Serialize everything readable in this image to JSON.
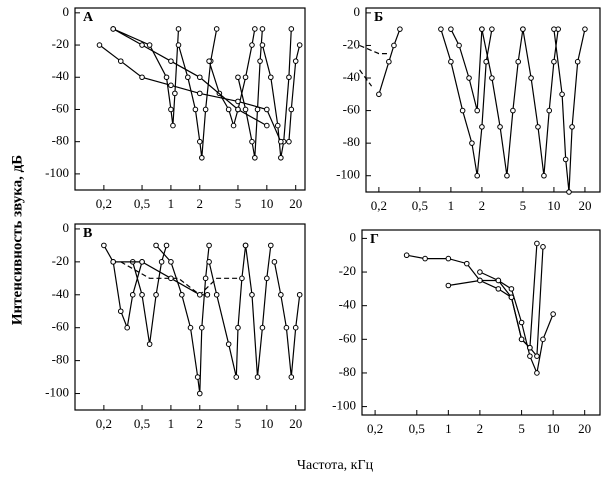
{
  "y_label": "Интенсивность звука, дБ",
  "x_label": "Частота, кГц",
  "chart_data": [
    {
      "type": "line",
      "title": "А",
      "log_x": true,
      "xlim": [
        0.1,
        25
      ],
      "ylim": [
        -110,
        3
      ],
      "xticks": [
        {
          "value": 0.2,
          "label": "0,2"
        },
        {
          "value": 0.5,
          "label": "0,5"
        },
        1,
        2,
        5,
        10,
        20
      ],
      "yticks": [
        0,
        -20,
        -40,
        -60,
        -80,
        -100
      ],
      "series": [
        {
          "color": "#000",
          "x": [
            0.25,
            0.6,
            0.9,
            1.0,
            1.05,
            1.1,
            1.2
          ],
          "values": [
            -10,
            -20,
            -40,
            -60,
            -70,
            -50,
            -10
          ]
        },
        {
          "color": "#000",
          "x": [
            1.2,
            1.5,
            1.8,
            2.0,
            2.1,
            2.3,
            2.6,
            3.0
          ],
          "values": [
            -20,
            -40,
            -60,
            -80,
            -90,
            -60,
            -30,
            -10
          ]
        },
        {
          "color": "#000",
          "x": [
            2.5,
            3.2,
            4,
            4.5,
            5,
            6,
            7,
            7.5
          ],
          "values": [
            -30,
            -50,
            -60,
            -70,
            -60,
            -40,
            -20,
            -10
          ]
        },
        {
          "color": "#000",
          "x": [
            5,
            6,
            7,
            7.5,
            8,
            8.5,
            9
          ],
          "values": [
            -40,
            -60,
            -80,
            -90,
            -60,
            -30,
            -10
          ]
        },
        {
          "color": "#000",
          "x": [
            9,
            11,
            13,
            14,
            15,
            17,
            18
          ],
          "values": [
            -20,
            -40,
            -70,
            -90,
            -80,
            -40,
            -10
          ]
        },
        {
          "color": "#000",
          "x": [
            0.18,
            0.3,
            0.5,
            1,
            2,
            5,
            10,
            14
          ],
          "values": [
            -20,
            -30,
            -40,
            -45,
            -50,
            -55,
            -60,
            -80
          ]
        },
        {
          "color": "#000",
          "x": [
            0.25,
            0.5,
            1,
            2,
            5,
            10
          ],
          "values": [
            -10,
            -20,
            -30,
            -40,
            -60,
            -70
          ]
        },
        {
          "color": "#000",
          "x": [
            17,
            18,
            20,
            22
          ],
          "values": [
            -80,
            -60,
            -30,
            -20
          ]
        }
      ]
    },
    {
      "type": "line",
      "title": "Б",
      "log_x": true,
      "xlim": [
        0.15,
        28
      ],
      "ylim": [
        -110,
        3
      ],
      "xticks": [
        {
          "value": 0.2,
          "label": "0,2"
        },
        {
          "value": 0.5,
          "label": "0,5"
        },
        1,
        2,
        5,
        10,
        20
      ],
      "yticks": [
        0,
        -20,
        -40,
        -60,
        -80,
        -100
      ],
      "series": [
        {
          "color": "#000",
          "dash": true,
          "x": [
            0.13,
            0.2,
            0.25
          ],
          "values": [
            -20,
            -25,
            -25
          ]
        },
        {
          "color": "#000",
          "dash": true,
          "x": [
            0.13,
            0.17
          ],
          "values": [
            -35,
            -45
          ]
        },
        {
          "color": "#000",
          "x": [
            0.2,
            0.25,
            0.28,
            0.32
          ],
          "values": [
            -50,
            -30,
            -20,
            -10
          ]
        },
        {
          "color": "#000",
          "x": [
            0.8,
            1,
            1.3,
            1.6,
            1.8,
            2,
            2.2,
            2.5
          ],
          "values": [
            -10,
            -30,
            -60,
            -80,
            -100,
            -70,
            -30,
            -10
          ]
        },
        {
          "color": "#000",
          "x": [
            2,
            2.5,
            3,
            3.5,
            4,
            4.5,
            5
          ],
          "values": [
            -10,
            -40,
            -70,
            -100,
            -60,
            -30,
            -10
          ]
        },
        {
          "color": "#000",
          "x": [
            5,
            6,
            7,
            8,
            9,
            10,
            11
          ],
          "values": [
            -10,
            -40,
            -70,
            -100,
            -60,
            -30,
            -10
          ]
        },
        {
          "color": "#000",
          "x": [
            10,
            12,
            13,
            14,
            15,
            17,
            20
          ],
          "values": [
            -10,
            -50,
            -90,
            -110,
            -70,
            -30,
            -10
          ]
        },
        {
          "color": "#000",
          "x": [
            1,
            1.2,
            1.5,
            1.8,
            2
          ],
          "values": [
            -10,
            -20,
            -40,
            -60,
            -10
          ]
        }
      ]
    },
    {
      "type": "line",
      "title": "В",
      "log_x": true,
      "xlim": [
        0.1,
        25
      ],
      "ylim": [
        -110,
        3
      ],
      "xticks": [
        {
          "value": 0.2,
          "label": "0,2"
        },
        {
          "value": 0.5,
          "label": "0,5"
        },
        1,
        2,
        5,
        10,
        20
      ],
      "yticks": [
        0,
        -20,
        -40,
        -60,
        -80,
        -100
      ],
      "series": [
        {
          "color": "#000",
          "x": [
            0.2,
            0.25,
            0.3,
            0.35,
            0.4,
            0.5
          ],
          "values": [
            -10,
            -20,
            -50,
            -60,
            -40,
            -20
          ]
        },
        {
          "color": "#000",
          "x": [
            0.4,
            0.5,
            0.6,
            0.7,
            0.8,
            0.9
          ],
          "values": [
            -20,
            -40,
            -70,
            -40,
            -20,
            -10
          ]
        },
        {
          "color": "#000",
          "x": [
            0.7,
            1,
            1.3,
            1.6,
            1.9,
            2,
            2.1,
            2.3,
            2.5
          ],
          "values": [
            -10,
            -20,
            -40,
            -60,
            -90,
            -100,
            -60,
            -30,
            -10
          ]
        },
        {
          "color": "#000",
          "x": [
            2.5,
            3,
            4,
            4.8,
            5,
            5.5,
            6
          ],
          "values": [
            -20,
            -40,
            -70,
            -90,
            -60,
            -30,
            -10
          ]
        },
        {
          "color": "#000",
          "x": [
            6,
            7,
            8,
            9,
            10,
            11
          ],
          "values": [
            -10,
            -40,
            -90,
            -60,
            -30,
            -10
          ]
        },
        {
          "color": "#000",
          "x": [
            12,
            14,
            16,
            18,
            20,
            22
          ],
          "values": [
            -20,
            -40,
            -60,
            -90,
            -60,
            -40
          ]
        },
        {
          "color": "#000",
          "dash": true,
          "x": [
            0.3,
            0.6,
            1.2,
            2,
            3,
            5
          ],
          "values": [
            -20,
            -30,
            -30,
            -40,
            -30,
            -30
          ]
        },
        {
          "color": "#000",
          "x": [
            0.25,
            0.5,
            1,
            2,
            2.4
          ],
          "values": [
            -20,
            -20,
            -30,
            -40,
            -40
          ]
        }
      ]
    },
    {
      "type": "line",
      "title": "Г",
      "log_x": true,
      "xlim": [
        0.15,
        28
      ],
      "ylim": [
        -105,
        5
      ],
      "xticks": [
        {
          "value": 0.2,
          "label": "0,2"
        },
        {
          "value": 0.5,
          "label": "0,5"
        },
        1,
        2,
        5,
        10,
        20
      ],
      "yticks": [
        0,
        -20,
        -40,
        -60,
        -80,
        -100
      ],
      "series": [
        {
          "color": "#000",
          "x": [
            0.4,
            0.6,
            1,
            1.5,
            2,
            3,
            4,
            5,
            6,
            7,
            8
          ],
          "values": [
            -10,
            -12,
            -12,
            -15,
            -25,
            -30,
            -35,
            -60,
            -65,
            -70,
            -5
          ]
        },
        {
          "color": "#000",
          "x": [
            1,
            2,
            3,
            4,
            5,
            6,
            7,
            8,
            10
          ],
          "values": [
            -28,
            -25,
            -25,
            -30,
            -50,
            -70,
            -80,
            -60,
            -45
          ]
        },
        {
          "color": "#000",
          "x": [
            2,
            3,
            4,
            5,
            6,
            7
          ],
          "values": [
            -20,
            -25,
            -35,
            -60,
            -65,
            -3
          ]
        }
      ]
    }
  ]
}
